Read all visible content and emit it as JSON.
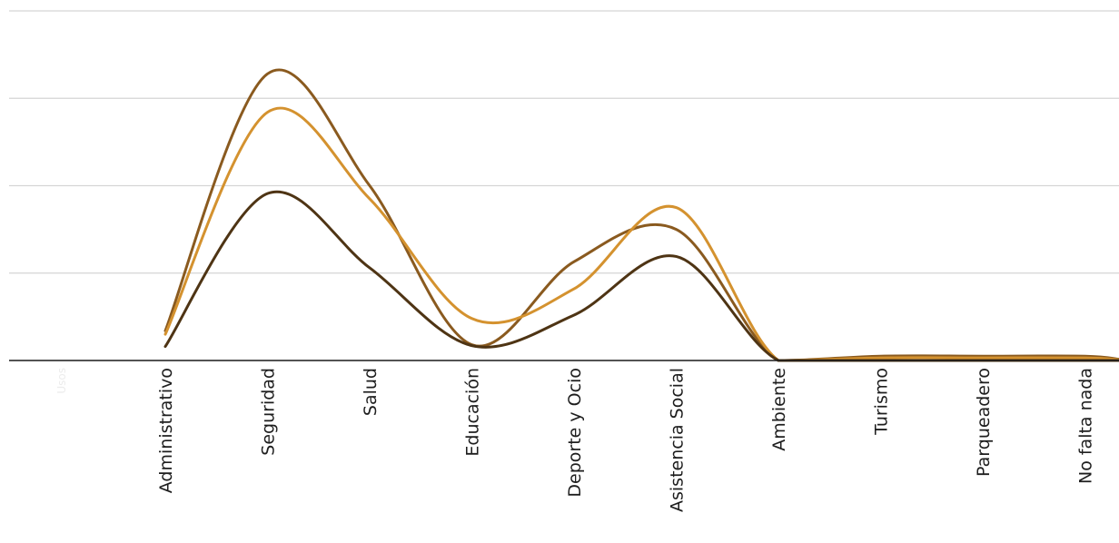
{
  "chart_data": {
    "type": "line",
    "title": "",
    "xlabel": "Usos",
    "ylabel": "",
    "x_axis_title": "Usos",
    "categories": [
      "Administrativo",
      "Seguridad",
      "Salud",
      "Educación",
      "Deporte y Ocio",
      "Asistencia Social",
      "Ambiente",
      "Turismo",
      "Parqueadero",
      "No falta nada"
    ],
    "series": [
      {
        "color": "#8a5a1f",
        "values": [
          0.34,
          3.28,
          2.0,
          0.18,
          1.13,
          1.5,
          0.0,
          0.05,
          0.05,
          0.05
        ]
      },
      {
        "color": "#d4922f",
        "values": [
          0.3,
          2.84,
          1.85,
          0.48,
          0.82,
          1.75,
          0.0,
          0.03,
          0.03,
          0.03
        ]
      },
      {
        "color": "#4e3414",
        "values": [
          0.16,
          1.91,
          1.06,
          0.17,
          0.52,
          1.19,
          0.0,
          0.0,
          0.0,
          0.0
        ]
      }
    ],
    "ylim": [
      0,
      4
    ],
    "grid": true
  }
}
